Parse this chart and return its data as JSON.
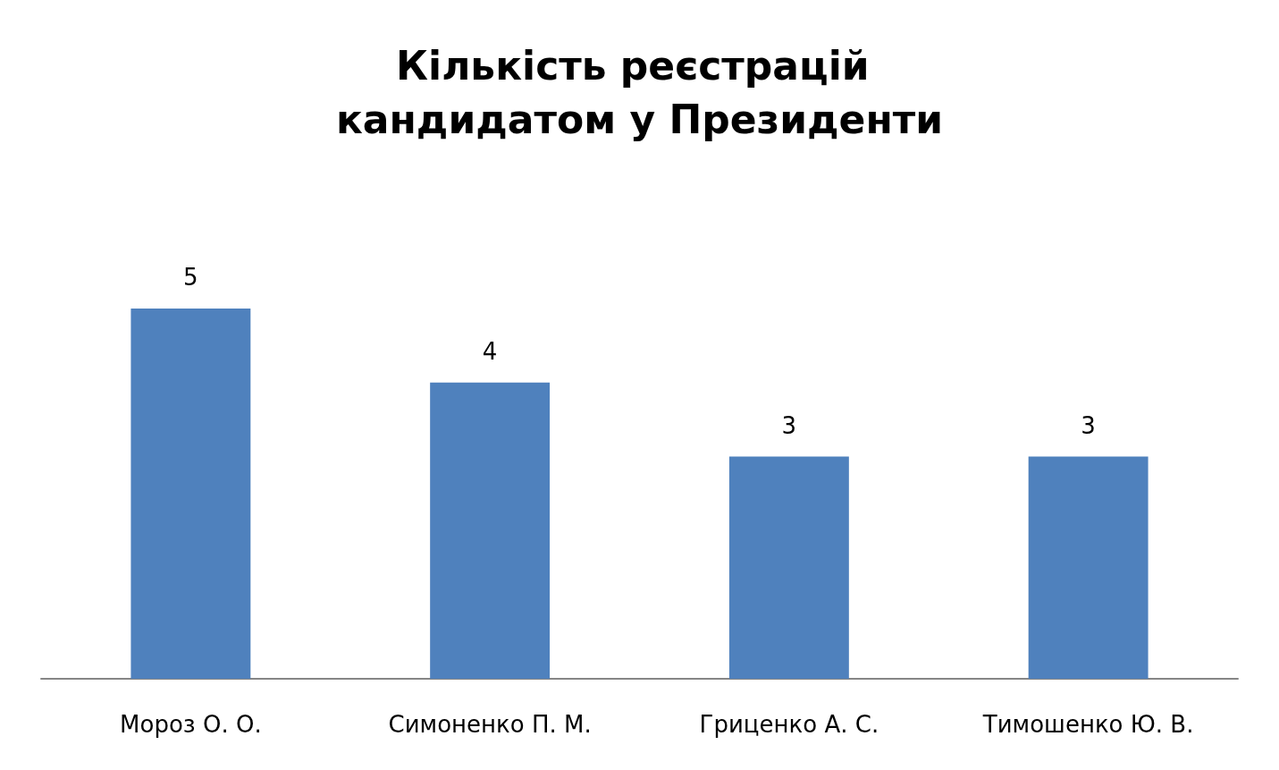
{
  "chart_data": {
    "type": "bar",
    "title": "Кількість реєстрацій кандидатом у Президенти",
    "categories": [
      "Мороз О. О.",
      "Симоненко П. М.",
      "Гриценко А. С.",
      "Тимошенко Ю. В."
    ],
    "values": [
      5,
      4,
      3,
      3
    ],
    "color": "#4f81bd",
    "data_labels": true,
    "grid": false
  }
}
